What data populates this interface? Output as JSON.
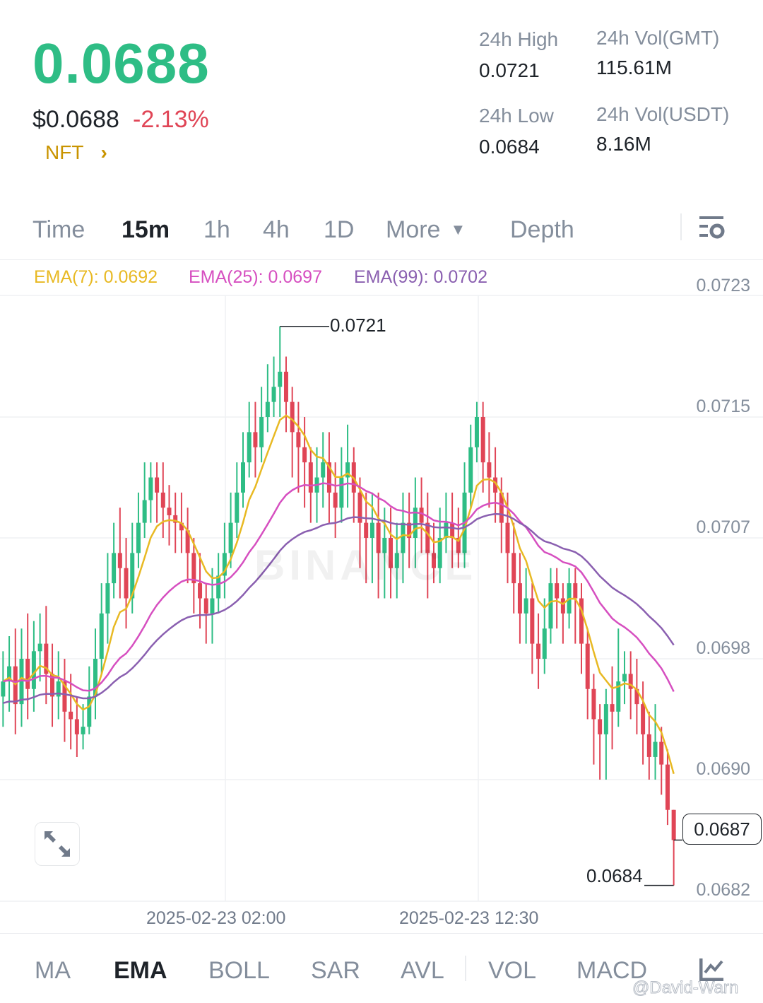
{
  "header": {
    "last_price": "0.0688",
    "usd_price": "$0.0688",
    "change": "-2.13%",
    "tag": "NFT",
    "tag_arrow": "›",
    "stats": [
      {
        "label": "24h High",
        "value": "0.0721"
      },
      {
        "label": "24h Vol(GMT)",
        "value": "115.61M"
      },
      {
        "label": "24h Low",
        "value": "0.0684"
      },
      {
        "label": "24h Vol(USDT)",
        "value": "8.16M"
      }
    ]
  },
  "tabs": [
    {
      "label": "Time"
    },
    {
      "label": "15m",
      "active": true
    },
    {
      "label": "1h"
    },
    {
      "label": "4h"
    },
    {
      "label": "1D"
    },
    {
      "label": "More"
    },
    {
      "label": "Depth"
    }
  ],
  "ema_legend": [
    {
      "label": "EMA(7): 0.0692",
      "color": "#e8b923"
    },
    {
      "label": "EMA(25): 0.0697",
      "color": "#d64fc0"
    },
    {
      "label": "EMA(99): 0.0702",
      "color": "#8a5fb0"
    }
  ],
  "indicators": [
    {
      "label": "MA"
    },
    {
      "label": "EMA",
      "active": true
    },
    {
      "label": "BOLL"
    },
    {
      "label": "SAR"
    },
    {
      "label": "AVL"
    },
    {
      "label": "VOL"
    },
    {
      "label": "MACD"
    }
  ],
  "watermark": "BINANCE",
  "credit": "@David-Warn",
  "chart_data": {
    "type": "candlestick",
    "interval": "15m",
    "yticks": [
      "0.0723",
      "0.0715",
      "0.0707",
      "0.0698",
      "0.0690",
      "0.0682"
    ],
    "xticks": [
      "2025-02-23 02:00",
      "2025-02-23 12:30"
    ],
    "ylim": [
      0.06817,
      0.07235
    ],
    "grid": true,
    "up_color": "#2ebd85",
    "down_color": "#e04556",
    "high_marker": "0.0721",
    "low_marker": "0.0684",
    "current_price": "0.0687",
    "candles_ohlc": [
      [
        0.06965,
        0.06995,
        0.06945,
        0.06975
      ],
      [
        0.06975,
        0.07005,
        0.06955,
        0.06985
      ],
      [
        0.06985,
        0.0701,
        0.0694,
        0.0696
      ],
      [
        0.0696,
        0.0701,
        0.06945,
        0.0699
      ],
      [
        0.0699,
        0.0702,
        0.0695,
        0.0697
      ],
      [
        0.0697,
        0.07015,
        0.06955,
        0.06995
      ],
      [
        0.06995,
        0.0702,
        0.06975,
        0.07
      ],
      [
        0.07,
        0.07025,
        0.0696,
        0.0698
      ],
      [
        0.0698,
        0.07,
        0.06945,
        0.06965
      ],
      [
        0.06965,
        0.06995,
        0.0695,
        0.06975
      ],
      [
        0.06975,
        0.0699,
        0.06935,
        0.06955
      ],
      [
        0.06955,
        0.0698,
        0.0693,
        0.0695
      ],
      [
        0.0695,
        0.06965,
        0.06925,
        0.0694
      ],
      [
        0.0694,
        0.0696,
        0.0693,
        0.06945
      ],
      [
        0.06945,
        0.06985,
        0.0694,
        0.06965
      ],
      [
        0.06965,
        0.0701,
        0.0695,
        0.0699
      ],
      [
        0.0699,
        0.0704,
        0.0698,
        0.0702
      ],
      [
        0.0702,
        0.0706,
        0.07,
        0.0704
      ],
      [
        0.0704,
        0.0708,
        0.0703,
        0.0706
      ],
      [
        0.0706,
        0.0709,
        0.0703,
        0.0705
      ],
      [
        0.0705,
        0.0707,
        0.0701,
        0.0703
      ],
      [
        0.0703,
        0.0708,
        0.0702,
        0.0706
      ],
      [
        0.0706,
        0.071,
        0.0705,
        0.0708
      ],
      [
        0.0708,
        0.0712,
        0.0707,
        0.07095
      ],
      [
        0.07095,
        0.0712,
        0.0708,
        0.0711
      ],
      [
        0.0711,
        0.0712,
        0.0708,
        0.071
      ],
      [
        0.071,
        0.0712,
        0.0707,
        0.0709
      ],
      [
        0.0709,
        0.07105,
        0.07065,
        0.07085
      ],
      [
        0.07085,
        0.071,
        0.0706,
        0.0708
      ],
      [
        0.0708,
        0.071,
        0.0706,
        0.07075
      ],
      [
        0.07075,
        0.0709,
        0.0704,
        0.0706
      ],
      [
        0.0706,
        0.0707,
        0.0702,
        0.0704
      ],
      [
        0.0704,
        0.0706,
        0.0701,
        0.0703
      ],
      [
        0.0703,
        0.0704,
        0.07,
        0.0702
      ],
      [
        0.0702,
        0.0705,
        0.07,
        0.0703
      ],
      [
        0.0703,
        0.0706,
        0.0702,
        0.07045
      ],
      [
        0.07045,
        0.0708,
        0.0703,
        0.0706
      ],
      [
        0.0706,
        0.071,
        0.0705,
        0.0708
      ],
      [
        0.0708,
        0.0712,
        0.0707,
        0.071
      ],
      [
        0.071,
        0.0714,
        0.0709,
        0.0712
      ],
      [
        0.0712,
        0.0716,
        0.0711,
        0.0714
      ],
      [
        0.0714,
        0.0716,
        0.0711,
        0.0713
      ],
      [
        0.0713,
        0.0717,
        0.0712,
        0.0715
      ],
      [
        0.0715,
        0.07185,
        0.0714,
        0.0716
      ],
      [
        0.0716,
        0.0719,
        0.0715,
        0.0717
      ],
      [
        0.0717,
        0.0721,
        0.0715,
        0.0718
      ],
      [
        0.0718,
        0.0719,
        0.0714,
        0.0716
      ],
      [
        0.0716,
        0.0717,
        0.0711,
        0.0714
      ],
      [
        0.0714,
        0.0716,
        0.071,
        0.0713
      ],
      [
        0.0713,
        0.0715,
        0.0709,
        0.0712
      ],
      [
        0.0712,
        0.0713,
        0.0708,
        0.071
      ],
      [
        0.071,
        0.0713,
        0.0708,
        0.0711
      ],
      [
        0.0711,
        0.0714,
        0.0709,
        0.0712
      ],
      [
        0.0712,
        0.0714,
        0.0708,
        0.071
      ],
      [
        0.071,
        0.0712,
        0.0707,
        0.0709
      ],
      [
        0.0709,
        0.0713,
        0.0708,
        0.0711
      ],
      [
        0.0711,
        0.07145,
        0.0709,
        0.0712
      ],
      [
        0.0712,
        0.0713,
        0.0708,
        0.071
      ],
      [
        0.071,
        0.0711,
        0.0705,
        0.0708
      ],
      [
        0.0708,
        0.071,
        0.0704,
        0.0707
      ],
      [
        0.0707,
        0.071,
        0.0704,
        0.0708
      ],
      [
        0.0708,
        0.071,
        0.0703,
        0.0706
      ],
      [
        0.0706,
        0.0709,
        0.0703,
        0.0707
      ],
      [
        0.0707,
        0.0709,
        0.0703,
        0.0705
      ],
      [
        0.0705,
        0.0708,
        0.0703,
        0.0706
      ],
      [
        0.0706,
        0.071,
        0.0704,
        0.0708
      ],
      [
        0.0708,
        0.071,
        0.0705,
        0.0707
      ],
      [
        0.0707,
        0.0711,
        0.0705,
        0.0709
      ],
      [
        0.0709,
        0.0711,
        0.0706,
        0.0708
      ],
      [
        0.0708,
        0.071,
        0.0703,
        0.0706
      ],
      [
        0.0706,
        0.0708,
        0.0704,
        0.0705
      ],
      [
        0.0705,
        0.0709,
        0.0704,
        0.0707
      ],
      [
        0.0707,
        0.071,
        0.0706,
        0.0708
      ],
      [
        0.0708,
        0.071,
        0.0705,
        0.0707
      ],
      [
        0.0707,
        0.0709,
        0.0705,
        0.0706
      ],
      [
        0.0706,
        0.0712,
        0.0705,
        0.071
      ],
      [
        0.071,
        0.07145,
        0.0709,
        0.0713
      ],
      [
        0.0713,
        0.0716,
        0.0712,
        0.0715
      ],
      [
        0.0715,
        0.0716,
        0.071,
        0.0712
      ],
      [
        0.0712,
        0.0714,
        0.0709,
        0.0711
      ],
      [
        0.0711,
        0.0713,
        0.0708,
        0.071
      ],
      [
        0.071,
        0.0711,
        0.0706,
        0.0708
      ],
      [
        0.0708,
        0.071,
        0.0704,
        0.0706
      ],
      [
        0.0706,
        0.0708,
        0.0702,
        0.0704
      ],
      [
        0.0704,
        0.0706,
        0.07,
        0.0702
      ],
      [
        0.0702,
        0.0705,
        0.07,
        0.0703
      ],
      [
        0.0703,
        0.0704,
        0.0698,
        0.07
      ],
      [
        0.07,
        0.0702,
        0.0697,
        0.0699
      ],
      [
        0.0699,
        0.0703,
        0.0698,
        0.0701
      ],
      [
        0.0701,
        0.0705,
        0.07,
        0.0704
      ],
      [
        0.0704,
        0.0705,
        0.0701,
        0.0703
      ],
      [
        0.0703,
        0.0704,
        0.07,
        0.0702
      ],
      [
        0.0702,
        0.0705,
        0.0701,
        0.0704
      ],
      [
        0.0704,
        0.0705,
        0.07,
        0.0703
      ],
      [
        0.0703,
        0.0704,
        0.0698,
        0.07
      ],
      [
        0.07,
        0.0701,
        0.0695,
        0.0697
      ],
      [
        0.0697,
        0.0698,
        0.0692,
        0.0695
      ],
      [
        0.0695,
        0.0696,
        0.0691,
        0.0694
      ],
      [
        0.0694,
        0.0697,
        0.0691,
        0.0696
      ],
      [
        0.0696,
        0.06985,
        0.0693,
        0.06955
      ],
      [
        0.06955,
        0.0701,
        0.06945,
        0.06975
      ],
      [
        0.06975,
        0.06995,
        0.0696,
        0.0698
      ],
      [
        0.0698,
        0.06995,
        0.0695,
        0.0697
      ],
      [
        0.0697,
        0.0699,
        0.0694,
        0.0696
      ],
      [
        0.0696,
        0.06975,
        0.0692,
        0.0694
      ],
      [
        0.0694,
        0.06955,
        0.0691,
        0.06925
      ],
      [
        0.06925,
        0.0696,
        0.0691,
        0.06935
      ],
      [
        0.06935,
        0.06945,
        0.069,
        0.0692
      ],
      [
        0.0692,
        0.0693,
        0.0688,
        0.0689
      ],
      [
        0.0689,
        0.0689,
        0.0684,
        0.0687
      ]
    ]
  }
}
